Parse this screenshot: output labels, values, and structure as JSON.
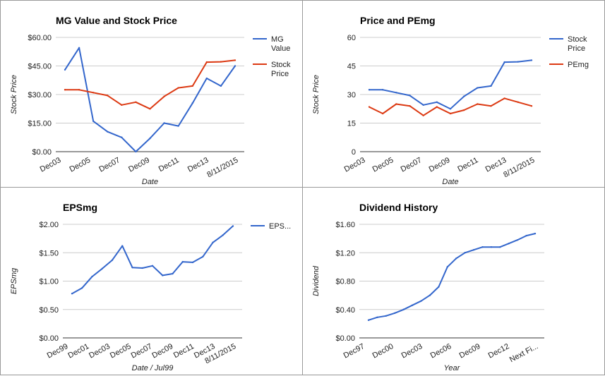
{
  "colors": {
    "blue": "#3366cc",
    "red": "#dc3912",
    "grid": "#cccccc",
    "baseline": "#333333"
  },
  "chart_data": [
    {
      "type": "line",
      "title": "MG Value and Stock Price",
      "xlabel": "Date",
      "ylabel": "Stock Price",
      "ylim": [
        0,
        60
      ],
      "yticks": [
        "$0.00",
        "$15.00",
        "$30.00",
        "$45.00",
        "$60.00"
      ],
      "xticks": [
        "Dec03",
        "Dec05",
        "Dec07",
        "Dec09",
        "Dec11",
        "Dec13",
        "8/11/2015"
      ],
      "grid": true,
      "legend": "right",
      "series": [
        {
          "name": "MG Value",
          "legend_lines": [
            "MG",
            "Value"
          ],
          "color": "#3366cc",
          "values": [
            43,
            54.5,
            16,
            10.5,
            7.5,
            0,
            7,
            15,
            13.5,
            25.5,
            38.5,
            34.5,
            45
          ]
        },
        {
          "name": "Stock Price",
          "legend_lines": [
            "Stock",
            "Price"
          ],
          "color": "#dc3912",
          "values": [
            32.5,
            32.5,
            31,
            29.5,
            24.5,
            26,
            22.5,
            29,
            33.5,
            34.5,
            47,
            47.2,
            48
          ]
        }
      ]
    },
    {
      "type": "line",
      "title": "Price and PEmg",
      "xlabel": "Date",
      "ylabel": "Stock Price",
      "ylim": [
        0,
        60
      ],
      "yticks": [
        "0",
        "15",
        "30",
        "45",
        "60"
      ],
      "xticks": [
        "Dec03",
        "Dec05",
        "Dec07",
        "Dec09",
        "Dec11",
        "Dec13",
        "8/11/2015"
      ],
      "grid": true,
      "legend": "right",
      "series": [
        {
          "name": "Stock Price",
          "legend_lines": [
            "Stock",
            "Price"
          ],
          "color": "#3366cc",
          "values": [
            32.5,
            32.5,
            31,
            29.5,
            24.5,
            26,
            22.5,
            29,
            33.5,
            34.5,
            47,
            47.2,
            48
          ]
        },
        {
          "name": "PEmg",
          "legend_lines": [
            "PEmg"
          ],
          "color": "#dc3912",
          "values": [
            23.5,
            20,
            25,
            24,
            19,
            23.5,
            20,
            21.8,
            25,
            24,
            28,
            26,
            24
          ]
        }
      ]
    },
    {
      "type": "line",
      "title": "EPSmg",
      "xlabel": "Date / Jul99",
      "ylabel": "EPSmg",
      "ylim": [
        0,
        2
      ],
      "yticks": [
        "$0.00",
        "$0.50",
        "$1.00",
        "$1.50",
        "$2.00"
      ],
      "xticks": [
        "Dec99",
        "Dec01",
        "Dec03",
        "Dec05",
        "Dec07",
        "Dec09",
        "Dec11",
        "Dec13",
        "8/11/2015"
      ],
      "grid": true,
      "legend": "right",
      "series": [
        {
          "name": "EPS...",
          "legend_lines": [
            "EPS..."
          ],
          "color": "#3366cc",
          "values": [
            0.78,
            0.88,
            1.08,
            1.22,
            1.37,
            1.62,
            1.24,
            1.23,
            1.27,
            1.1,
            1.13,
            1.34,
            1.33,
            1.43,
            1.68,
            1.81,
            1.97
          ]
        }
      ]
    },
    {
      "type": "line",
      "title": "Dividend History",
      "xlabel": "Year",
      "ylabel": "Dividend",
      "ylim": [
        0,
        1.6
      ],
      "yticks": [
        "$0.00",
        "$0.40",
        "$0.80",
        "$1.20",
        "$1.60"
      ],
      "xticks": [
        "Dec97",
        "Dec00",
        "Dec03",
        "Dec06",
        "Dec09",
        "Dec12",
        "Next Fi..."
      ],
      "grid": true,
      "legend": "none",
      "series": [
        {
          "name": "",
          "legend_lines": [],
          "color": "#3366cc",
          "values": [
            0.25,
            0.29,
            0.31,
            0.35,
            0.4,
            0.46,
            0.52,
            0.6,
            0.72,
            1.0,
            1.12,
            1.2,
            1.24,
            1.28,
            1.28,
            1.28,
            1.33,
            1.38,
            1.44,
            1.47
          ]
        }
      ]
    }
  ]
}
